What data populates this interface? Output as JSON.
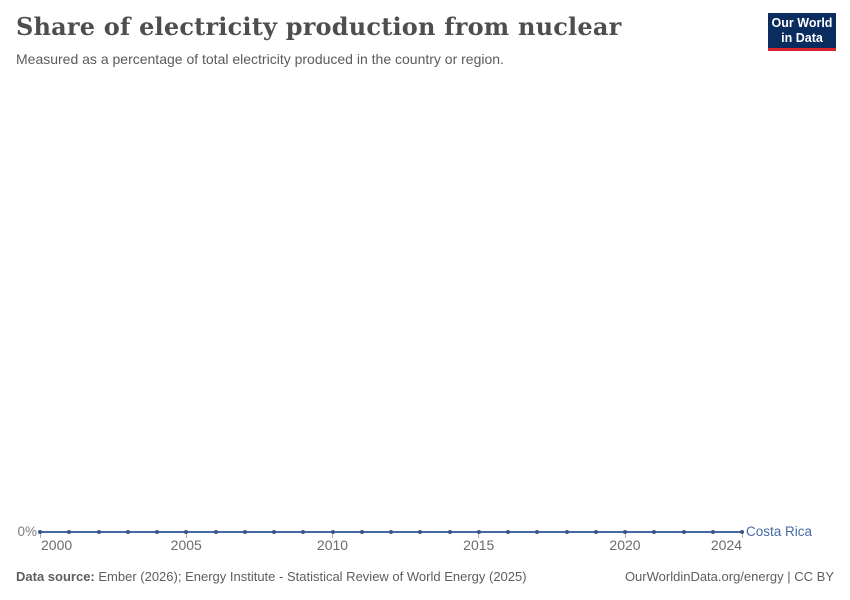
{
  "header": {
    "title": "Share of electricity production from nuclear",
    "subtitle": "Measured as a percentage of total electricity produced in the country or region.",
    "logo_line1": "Our World",
    "logo_line2": "in Data",
    "logo_bg_color": "#0a2c5e",
    "logo_stripe_color": "#d8262c"
  },
  "chart_data": {
    "type": "line",
    "title": "Share of electricity production from nuclear",
    "subtitle": "Measured as a percentage of total electricity produced in the country or region.",
    "xlabel": "",
    "ylabel": "",
    "xlim": [
      2000,
      2024
    ],
    "ylim": [
      0,
      0
    ],
    "grid": false,
    "legend": "inline-end-label",
    "x": [
      2000,
      2001,
      2002,
      2003,
      2004,
      2005,
      2006,
      2007,
      2008,
      2009,
      2010,
      2011,
      2012,
      2013,
      2014,
      2015,
      2016,
      2017,
      2018,
      2019,
      2020,
      2021,
      2022,
      2023,
      2024
    ],
    "series": [
      {
        "name": "Costa Rica",
        "color": "#4669a5",
        "marker_color": "#3a5588",
        "values": [
          0,
          0,
          0,
          0,
          0,
          0,
          0,
          0,
          0,
          0,
          0,
          0,
          0,
          0,
          0,
          0,
          0,
          0,
          0,
          0,
          0,
          0,
          0,
          0,
          0
        ]
      }
    ],
    "x_tick_labels": [
      2000,
      2005,
      2010,
      2015,
      2020,
      2024
    ],
    "yticks": [
      {
        "value": 0,
        "label": "0%"
      }
    ]
  },
  "footer": {
    "datasource_label": "Data source:",
    "datasource_rest": " Ember (2026); Energy Institute - Statistical Review of World Energy (2025)",
    "link_text": "OurWorldinData.org/energy | CC BY"
  }
}
